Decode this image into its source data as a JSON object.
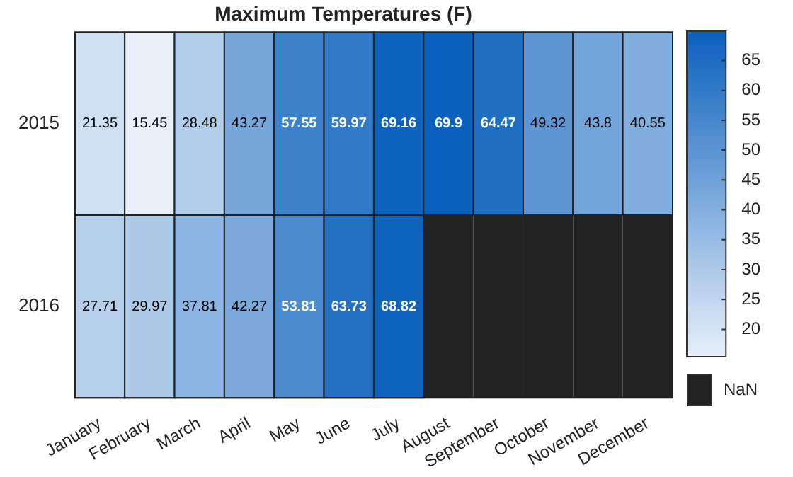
{
  "chart_data": {
    "type": "heatmap",
    "title": "Maximum Temperatures (F)",
    "categories": [
      "January",
      "February",
      "March",
      "April",
      "May",
      "June",
      "July",
      "August",
      "September",
      "October",
      "November",
      "December"
    ],
    "y_categories": [
      "2015",
      "2016"
    ],
    "cells": [
      [
        21.35,
        15.45,
        28.48,
        43.27,
        57.55,
        59.97,
        69.16,
        69.9,
        64.47,
        49.32,
        43.8,
        40.55
      ],
      [
        27.71,
        29.97,
        37.81,
        42.27,
        53.81,
        63.73,
        68.82,
        null,
        null,
        null,
        null,
        null
      ]
    ],
    "data_labels": true,
    "clim": [
      15.45,
      69.9
    ],
    "cticks": [
      20,
      25,
      30,
      35,
      40,
      45,
      50,
      55,
      60,
      65
    ],
    "annotations": [
      "NaN"
    ]
  }
}
